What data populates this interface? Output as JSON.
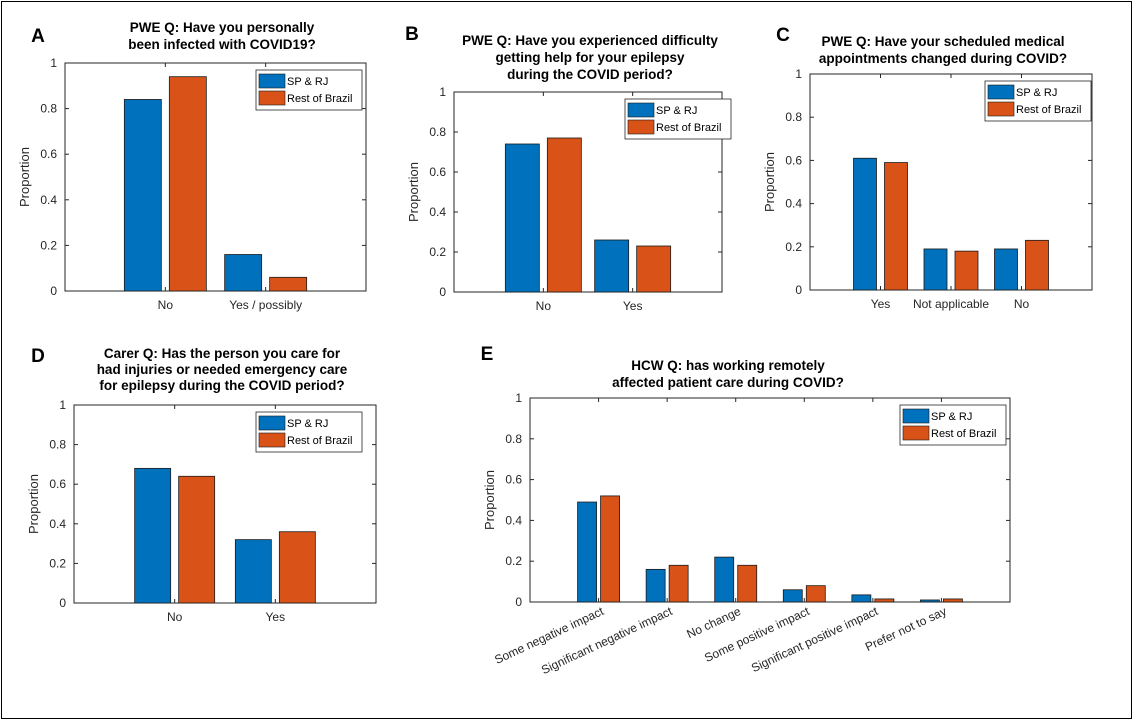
{
  "colors": {
    "series1": "#0072BD",
    "series2": "#D95319",
    "axis": "#262626"
  },
  "chart_data": [
    {
      "panel": "A",
      "type": "bar",
      "title": [
        "PWE Q: Have you personally",
        "been infected with COVID19?"
      ],
      "ylabel": "Proportion",
      "ylim": [
        0,
        1
      ],
      "yticks": [
        0,
        0.2,
        0.4,
        0.6,
        0.8,
        1
      ],
      "categories": [
        "No",
        "Yes / possibly"
      ],
      "series": [
        {
          "name": "SP & RJ",
          "values": [
            0.84,
            0.16
          ]
        },
        {
          "name": "Rest of Brazil",
          "values": [
            0.94,
            0.06
          ]
        }
      ],
      "legend": "top-right"
    },
    {
      "panel": "B",
      "type": "bar",
      "title": [
        "PWE Q: Have you experienced difficulty",
        "getting help for your epilepsy",
        "during the COVID period?"
      ],
      "ylabel": "Proportion",
      "ylim": [
        0,
        1
      ],
      "yticks": [
        0,
        0.2,
        0.4,
        0.6,
        0.8,
        1
      ],
      "categories": [
        "No",
        "Yes"
      ],
      "series": [
        {
          "name": "SP & RJ",
          "values": [
            0.74,
            0.26
          ]
        },
        {
          "name": "Rest of Brazil",
          "values": [
            0.77,
            0.23
          ]
        }
      ],
      "legend": "top-right"
    },
    {
      "panel": "C",
      "type": "bar",
      "title": [
        "PWE Q: Have your scheduled medical",
        "appointments changed during COVID?"
      ],
      "ylabel": "Proportion",
      "ylim": [
        0,
        1
      ],
      "yticks": [
        0,
        0.2,
        0.4,
        0.6,
        0.8,
        1
      ],
      "categories": [
        "Yes",
        "Not applicable",
        "No"
      ],
      "series": [
        {
          "name": "SP & RJ",
          "values": [
            0.61,
            0.19,
            0.19
          ]
        },
        {
          "name": "Rest of Brazil",
          "values": [
            0.59,
            0.18,
            0.23
          ]
        }
      ],
      "legend": "top-right"
    },
    {
      "panel": "D",
      "type": "bar",
      "title": [
        "Carer Q: Has the person you care for",
        "had injuries or needed emergency care",
        "for epilepsy during the COVID period?"
      ],
      "ylabel": "Proportion",
      "ylim": [
        0,
        1
      ],
      "yticks": [
        0,
        0.2,
        0.4,
        0.6,
        0.8,
        1
      ],
      "categories": [
        "No",
        "Yes"
      ],
      "series": [
        {
          "name": "SP & RJ",
          "values": [
            0.68,
            0.32
          ]
        },
        {
          "name": "Rest of Brazil",
          "values": [
            0.64,
            0.36
          ]
        }
      ],
      "legend": "top-right"
    },
    {
      "panel": "E",
      "type": "bar",
      "title": [
        "HCW Q: has working remotely",
        "affected patient care during COVID?"
      ],
      "ylabel": "Proportion",
      "ylim": [
        0,
        1
      ],
      "yticks": [
        0,
        0.2,
        0.4,
        0.6,
        0.8,
        1
      ],
      "categories": [
        "Some negative impact",
        "Significant negative impact",
        "No change",
        "Some positive impact",
        "Significant positive impact",
        "Prefer not to say"
      ],
      "rotated_labels": true,
      "series": [
        {
          "name": "SP & RJ",
          "values": [
            0.49,
            0.16,
            0.22,
            0.06,
            0.035,
            0.01
          ]
        },
        {
          "name": "Rest of Brazil",
          "values": [
            0.52,
            0.18,
            0.18,
            0.08,
            0.015,
            0.015
          ]
        }
      ],
      "legend": "top-right"
    }
  ]
}
